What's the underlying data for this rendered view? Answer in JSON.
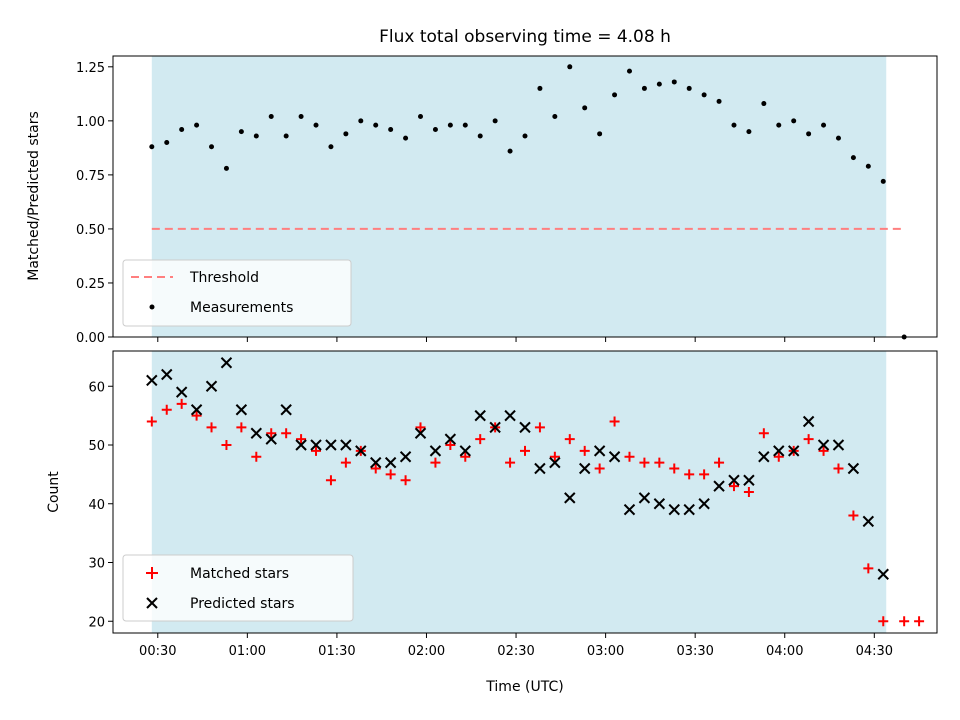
{
  "chart_data": [
    {
      "type": "scatter",
      "title": "Flux total observing time = 4.08 h",
      "xlabel": "",
      "ylabel": "Matched/Predicted stars",
      "ylim": [
        0.0,
        1.3
      ],
      "yticks": [
        "0.00",
        "0.25",
        "0.50",
        "0.75",
        "1.00",
        "1.25"
      ],
      "xlim_minutes": [
        15,
        291
      ],
      "shade_range_minutes": [
        28,
        274
      ],
      "shade_color": "#add8e6",
      "threshold": {
        "name": "Threshold",
        "value": 0.5,
        "x_range_minutes": [
          28,
          280
        ],
        "color": "#ff7f7f"
      },
      "series": [
        {
          "name": "Measurements",
          "color": "#000000",
          "x_minutes": [
            28,
            33,
            38,
            43,
            48,
            53,
            58,
            63,
            68,
            73,
            78,
            83,
            88,
            93,
            98,
            103,
            108,
            113,
            118,
            123,
            128,
            133,
            138,
            143,
            148,
            153,
            158,
            163,
            168,
            173,
            178,
            183,
            188,
            193,
            198,
            203,
            208,
            213,
            218,
            223,
            228,
            233,
            238,
            243,
            248,
            253,
            258,
            263,
            268,
            273,
            280
          ],
          "values": [
            0.88,
            0.9,
            0.96,
            0.98,
            0.88,
            0.78,
            0.95,
            0.93,
            1.02,
            0.93,
            1.02,
            0.98,
            0.88,
            0.94,
            1.0,
            0.98,
            0.96,
            0.92,
            1.02,
            0.96,
            0.98,
            0.98,
            0.93,
            1.0,
            0.86,
            0.93,
            1.15,
            1.02,
            1.25,
            1.06,
            0.94,
            1.12,
            1.23,
            1.15,
            1.17,
            1.18,
            1.15,
            1.12,
            1.09,
            0.98,
            0.95,
            1.08,
            0.98,
            1.0,
            0.94,
            0.98,
            0.92,
            0.83,
            0.79,
            0.72,
            0.0
          ]
        }
      ]
    },
    {
      "type": "scatter",
      "title": "",
      "xlabel": "Time (UTC)",
      "ylabel": "Count",
      "ylim": [
        18,
        66
      ],
      "yticks": [
        "20",
        "30",
        "40",
        "50",
        "60"
      ],
      "xlim_minutes": [
        15,
        291
      ],
      "xtick_labels": [
        "00:30",
        "01:00",
        "01:30",
        "02:00",
        "02:30",
        "03:00",
        "03:30",
        "04:00",
        "04:30"
      ],
      "xtick_minutes": [
        30,
        60,
        90,
        120,
        150,
        180,
        210,
        240,
        270
      ],
      "shade_range_minutes": [
        28,
        274
      ],
      "shade_color": "#add8e6",
      "series": [
        {
          "name": "Matched stars",
          "marker": "plus",
          "color": "#ff0000",
          "x_minutes": [
            28,
            33,
            38,
            43,
            48,
            53,
            58,
            63,
            68,
            73,
            78,
            83,
            88,
            93,
            98,
            103,
            108,
            113,
            118,
            123,
            128,
            133,
            138,
            143,
            148,
            153,
            158,
            163,
            168,
            173,
            178,
            183,
            188,
            193,
            198,
            203,
            208,
            213,
            218,
            223,
            228,
            233,
            238,
            243,
            248,
            253,
            258,
            263,
            268,
            273,
            280,
            285
          ],
          "values": [
            54,
            56,
            57,
            55,
            53,
            50,
            53,
            48,
            52,
            52,
            51,
            49,
            44,
            47,
            49,
            46,
            45,
            44,
            53,
            47,
            50,
            48,
            51,
            53,
            47,
            49,
            53,
            48,
            51,
            49,
            46,
            54,
            48,
            47,
            47,
            46,
            45,
            45,
            47,
            43,
            42,
            52,
            48,
            49,
            51,
            49,
            46,
            38,
            29,
            20,
            20,
            20
          ]
        },
        {
          "name": "Predicted stars",
          "marker": "x",
          "color": "#000000",
          "x_minutes": [
            28,
            33,
            38,
            43,
            48,
            53,
            58,
            63,
            68,
            73,
            78,
            83,
            88,
            93,
            98,
            103,
            108,
            113,
            118,
            123,
            128,
            133,
            138,
            143,
            148,
            153,
            158,
            163,
            168,
            173,
            178,
            183,
            188,
            193,
            198,
            203,
            208,
            213,
            218,
            223,
            228,
            233,
            238,
            243,
            248,
            253,
            258,
            263,
            268,
            273
          ],
          "values": [
            61,
            62,
            59,
            56,
            60,
            64,
            56,
            52,
            51,
            56,
            50,
            50,
            50,
            50,
            49,
            47,
            47,
            48,
            52,
            49,
            51,
            49,
            55,
            53,
            55,
            53,
            46,
            47,
            41,
            46,
            49,
            48,
            39,
            41,
            40,
            39,
            39,
            40,
            43,
            44,
            44,
            48,
            49,
            49,
            54,
            50,
            50,
            46,
            37,
            28
          ]
        }
      ]
    }
  ]
}
